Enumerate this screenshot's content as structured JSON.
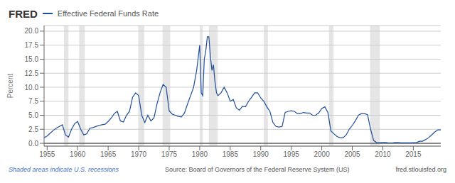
{
  "chart_data": {
    "type": "line",
    "title": "Effective Federal Funds Rate",
    "ylabel": "Percent",
    "annotations": [
      "FRED",
      "Shaded areas indicate U.S. recessions",
      "Source: Board of Governors of the Federal Reserve System (US)",
      "fred.stlouisfed.org"
    ],
    "color": "#1f4e99",
    "grid": true,
    "xlim": [
      1954.5,
      2019.5
    ],
    "ylim": [
      -0.5,
      21.0
    ],
    "xticks": [
      1955,
      1960,
      1965,
      1970,
      1975,
      1980,
      1985,
      1990,
      1995,
      2000,
      2005,
      2010,
      2015
    ],
    "yticks": [
      {
        "value": 0.0,
        "label": "0.0"
      },
      2.5,
      {
        "value": 5.0,
        "label": "5.0"
      },
      7.5,
      {
        "value": 10.0,
        "label": "10.0"
      },
      12.5,
      {
        "value": 15.0,
        "label": "15.0"
      },
      17.5,
      {
        "value": 20.0,
        "label": "20.0"
      }
    ],
    "reference_line": 0,
    "recessions": [
      [
        1957.75,
        1958.5
      ],
      [
        1960.25,
        1961.17
      ],
      [
        1969.92,
        1970.92
      ],
      [
        1973.92,
        1975.17
      ],
      [
        1980.0,
        1980.5
      ],
      [
        1981.5,
        1982.92
      ],
      [
        1990.5,
        1991.17
      ],
      [
        2001.17,
        2001.92
      ],
      [
        2007.92,
        2009.5
      ]
    ],
    "x": [
      1954.5,
      1955,
      1955.5,
      1956,
      1956.5,
      1957,
      1957.5,
      1958,
      1958.5,
      1959,
      1959.5,
      1960,
      1960.5,
      1961,
      1961.5,
      1962,
      1962.5,
      1963,
      1963.5,
      1964,
      1964.5,
      1965,
      1965.5,
      1966,
      1966.5,
      1967,
      1967.5,
      1968,
      1968.5,
      1969,
      1969.5,
      1970,
      1970.5,
      1971,
      1971.5,
      1972,
      1972.5,
      1973,
      1973.5,
      1974,
      1974.5,
      1975,
      1975.5,
      1976,
      1976.5,
      1977,
      1977.5,
      1978,
      1978.5,
      1979,
      1979.5,
      1980,
      1980.25,
      1980.5,
      1980.75,
      1981,
      1981.25,
      1981.5,
      1981.75,
      1982,
      1982.25,
      1982.5,
      1982.75,
      1983,
      1983.5,
      1984,
      1984.5,
      1985,
      1985.5,
      1986,
      1986.5,
      1987,
      1987.5,
      1988,
      1988.5,
      1989,
      1989.5,
      1990,
      1990.5,
      1991,
      1991.5,
      1992,
      1992.5,
      1993,
      1993.5,
      1994,
      1994.5,
      1995,
      1995.5,
      1996,
      1996.5,
      1997,
      1997.5,
      1998,
      1998.5,
      1999,
      1999.5,
      2000,
      2000.5,
      2001,
      2001.5,
      2002,
      2002.5,
      2003,
      2003.5,
      2004,
      2004.5,
      2005,
      2005.5,
      2006,
      2006.5,
      2007,
      2007.5,
      2008,
      2008.5,
      2009,
      2009.5,
      2010,
      2010.5,
      2011,
      2011.5,
      2012,
      2012.5,
      2013,
      2013.5,
      2014,
      2014.5,
      2015,
      2015.5,
      2016,
      2016.5,
      2017,
      2017.5,
      2018,
      2018.5,
      2019,
      2019.5
    ],
    "values": [
      1.0,
      1.3,
      1.8,
      2.3,
      2.7,
      3.0,
      3.3,
      1.5,
      1.1,
      2.5,
      3.5,
      3.9,
      2.5,
      1.5,
      1.7,
      2.7,
      2.8,
      3.0,
      3.2,
      3.3,
      3.4,
      3.9,
      4.5,
      5.3,
      5.7,
      4.0,
      3.8,
      5.0,
      5.7,
      8.2,
      9.0,
      8.5,
      5.0,
      3.7,
      5.0,
      4.0,
      4.5,
      7.0,
      9.0,
      10.5,
      10.0,
      5.8,
      5.2,
      5.0,
      4.8,
      4.7,
      5.4,
      7.0,
      8.5,
      10.0,
      13.0,
      17.5,
      9.0,
      8.5,
      15.0,
      16.5,
      19.0,
      19.0,
      15.5,
      13.0,
      14.0,
      11.0,
      9.0,
      8.5,
      9.0,
      10.0,
      9.0,
      7.5,
      7.8,
      6.3,
      5.9,
      6.6,
      6.5,
      7.5,
      8.2,
      9.0,
      9.0,
      8.1,
      7.5,
      6.5,
      5.7,
      3.7,
      3.0,
      2.9,
      3.0,
      5.5,
      5.7,
      5.8,
      5.7,
      5.3,
      5.3,
      5.5,
      5.4,
      5.4,
      5.0,
      5.0,
      5.4,
      6.2,
      6.5,
      5.5,
      2.2,
      1.7,
      1.2,
      1.0,
      1.0,
      1.5,
      2.5,
      3.2,
      4.0,
      5.0,
      5.3,
      5.3,
      5.1,
      2.5,
      0.5,
      0.12,
      0.12,
      0.15,
      0.15,
      0.07,
      0.07,
      0.14,
      0.14,
      0.09,
      0.09,
      0.09,
      0.09,
      0.12,
      0.12,
      0.37,
      0.37,
      0.65,
      1.0,
      1.5,
      2.0,
      2.4,
      2.4
    ]
  }
}
